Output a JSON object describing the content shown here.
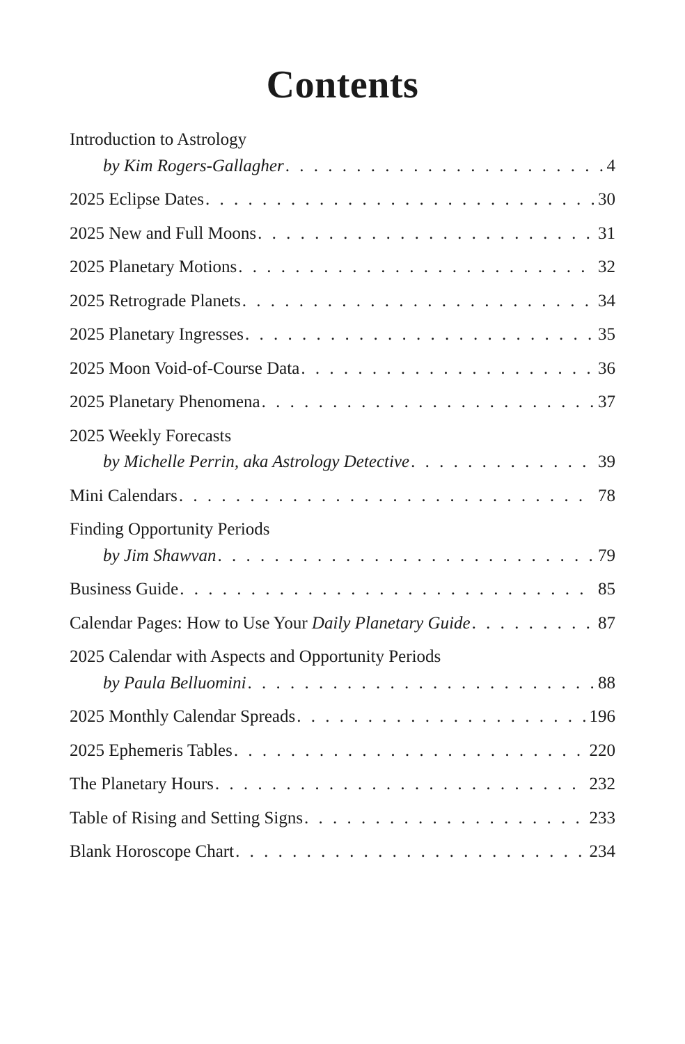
{
  "title": "Contents",
  "entries": [
    {
      "title": "Introduction to Astrology",
      "byline": "by Kim Rogers-Gallagher",
      "page": "4"
    },
    {
      "title": "2025 Eclipse Dates",
      "page": "30"
    },
    {
      "title": "2025 New and Full Moons",
      "page": "31"
    },
    {
      "title": "2025 Planetary Motions",
      "page": "32"
    },
    {
      "title": "2025 Retrograde Planets",
      "page": "34"
    },
    {
      "title": "2025 Planetary Ingresses",
      "page": "35"
    },
    {
      "title": "2025 Moon Void-of-Course Data",
      "page": "36"
    },
    {
      "title": "2025 Planetary Phenomena",
      "page": "37"
    },
    {
      "title": "2025 Weekly Forecasts",
      "byline": "by Michelle Perrin, aka Astrology Detective",
      "page": "39"
    },
    {
      "title": "Mini Calendars",
      "page": "78"
    },
    {
      "title": "Finding Opportunity Periods",
      "byline": "by Jim Shawvan",
      "page": "79"
    },
    {
      "title": "Business Guide",
      "page": "85"
    },
    {
      "title_html": "Calendar Pages: How to Use Your <span class=\"italic\">Daily Planetary Guide</span>",
      "page": "87"
    },
    {
      "title": "2025 Calendar with Aspects and Opportunity Periods",
      "byline": "by Paula Belluomini",
      "page": "88"
    },
    {
      "title": "2025 Monthly Calendar Spreads",
      "page": "196"
    },
    {
      "title": "2025 Ephemeris Tables",
      "page": "220"
    },
    {
      "title": "The Planetary Hours",
      "page": "232"
    },
    {
      "title": "Table of Rising and Setting Signs",
      "page": "233"
    },
    {
      "title": "Blank Horoscope Chart",
      "page": "234"
    }
  ]
}
